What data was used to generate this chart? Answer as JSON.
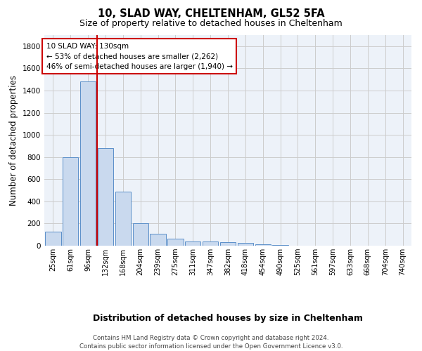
{
  "title": "10, SLAD WAY, CHELTENHAM, GL52 5FA",
  "subtitle": "Size of property relative to detached houses in Cheltenham",
  "xlabel": "Distribution of detached houses by size in Cheltenham",
  "ylabel": "Number of detached properties",
  "footer_line1": "Contains HM Land Registry data © Crown copyright and database right 2024.",
  "footer_line2": "Contains public sector information licensed under the Open Government Licence v3.0.",
  "bar_color": "#c9d9ee",
  "bar_edge_color": "#5b8fc9",
  "grid_color": "#cccccc",
  "background_color": "#ffffff",
  "plot_background": "#edf2f9",
  "vline_color": "#cc0000",
  "annotation_text": "10 SLAD WAY: 130sqm\n← 53% of detached houses are smaller (2,262)\n46% of semi-detached houses are larger (1,940) →",
  "annotation_box_color": "#cc0000",
  "categories": [
    "25sqm",
    "61sqm",
    "96sqm",
    "132sqm",
    "168sqm",
    "204sqm",
    "239sqm",
    "275sqm",
    "311sqm",
    "347sqm",
    "382sqm",
    "418sqm",
    "454sqm",
    "490sqm",
    "525sqm",
    "561sqm",
    "597sqm",
    "633sqm",
    "668sqm",
    "704sqm",
    "740sqm"
  ],
  "values": [
    125,
    800,
    1480,
    880,
    490,
    200,
    105,
    65,
    40,
    35,
    30,
    25,
    15,
    8,
    2,
    1,
    1,
    0,
    0,
    0,
    0
  ],
  "ylim": [
    0,
    1900
  ],
  "yticks": [
    0,
    200,
    400,
    600,
    800,
    1000,
    1200,
    1400,
    1600,
    1800
  ]
}
